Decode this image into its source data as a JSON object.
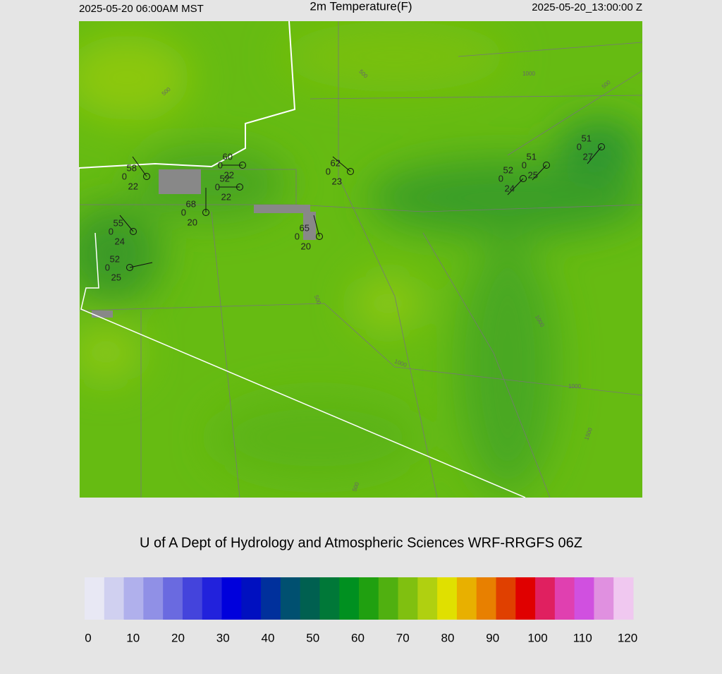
{
  "header": {
    "left": "2025-05-20 06:00AM MST",
    "title": "2m Temperature(F)",
    "right": "2025-05-20_13:00:00 Z"
  },
  "credit": "U of A Dept of Hydrology and Atmospheric Sciences WRF-RRGFS 06Z",
  "contour_labels": [
    "500",
    "500",
    "1000",
    "500",
    "500",
    "1000",
    "1000",
    "1000",
    "1500",
    "500"
  ],
  "stations": [
    {
      "temp": 58,
      "mid": 0,
      "dew": 22
    },
    {
      "temp": 60,
      "mid": 0,
      "dew": 22
    },
    {
      "temp": 52,
      "mid": 0,
      "dew": 22
    },
    {
      "temp": 62,
      "mid": 0,
      "dew": 23
    },
    {
      "temp": 68,
      "mid": 0,
      "dew": 20
    },
    {
      "temp": 65,
      "mid": 0,
      "dew": 20
    },
    {
      "temp": 55,
      "mid": 0,
      "dew": 24
    },
    {
      "temp": 52,
      "mid": 0,
      "dew": 25
    },
    {
      "temp": 52,
      "mid": 0,
      "dew": 24
    },
    {
      "temp": 51,
      "mid": 0,
      "dew": 25
    },
    {
      "temp": 51,
      "mid": 0,
      "dew": 27
    }
  ],
  "colorbar": {
    "ticks": [
      0,
      10,
      20,
      30,
      40,
      50,
      60,
      70,
      80,
      90,
      100,
      110,
      120
    ],
    "colors": [
      "#e8e8f4",
      "#d0d0f0",
      "#b0b0ec",
      "#9090e6",
      "#6a6ae0",
      "#4444dc",
      "#2222dc",
      "#0000dc",
      "#0010c0",
      "#00309c",
      "#005070",
      "#006050",
      "#007838",
      "#009020",
      "#20a010",
      "#50b010",
      "#80c010",
      "#b0d010",
      "#e0e000",
      "#e8b000",
      "#e88000",
      "#e04000",
      "#e00000",
      "#e02060",
      "#e040b0",
      "#d050e0",
      "#e090e0",
      "#f0c8f0"
    ]
  }
}
